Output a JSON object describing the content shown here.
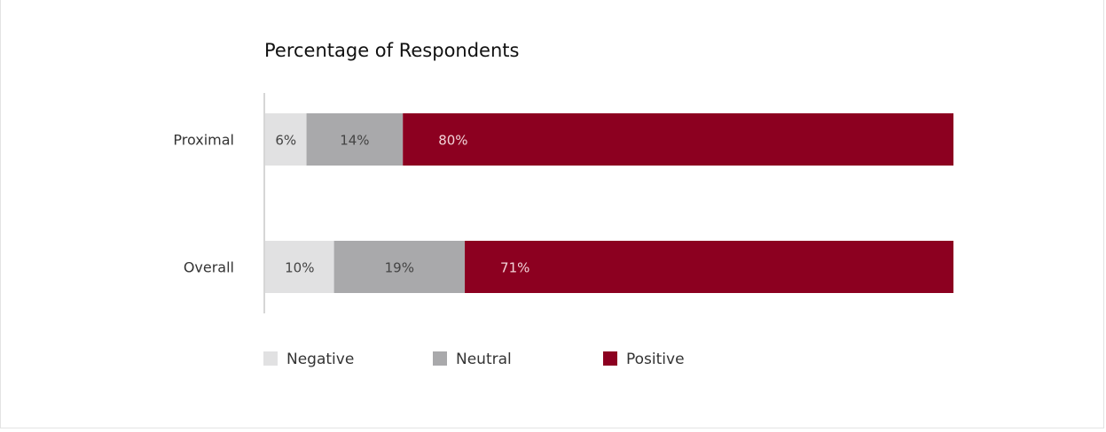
{
  "chart_data": {
    "type": "bar",
    "orientation": "horizontal",
    "stacked": true,
    "title": "Percentage of Respondents",
    "categories": [
      "Proximal",
      "Overall"
    ],
    "series": [
      {
        "name": "Negative",
        "values": [
          6,
          10
        ],
        "labels": [
          "6%",
          "10%"
        ]
      },
      {
        "name": "Neutral",
        "values": [
          14,
          19
        ],
        "labels": [
          "14%",
          "19%"
        ]
      },
      {
        "name": "Positive",
        "values": [
          80,
          71
        ],
        "labels": [
          "80%",
          "71%"
        ]
      }
    ],
    "xlim": [
      0,
      100
    ],
    "grid": false,
    "legend_position": "bottom"
  },
  "colors": {
    "Negative": "#e1e1e2",
    "Neutral": "#a9a9ab",
    "Positive": "#8c0020",
    "label_dark": "#444444",
    "label_light": "#f2d3d9",
    "axis": "#d6d6d6",
    "text": "#333333"
  }
}
